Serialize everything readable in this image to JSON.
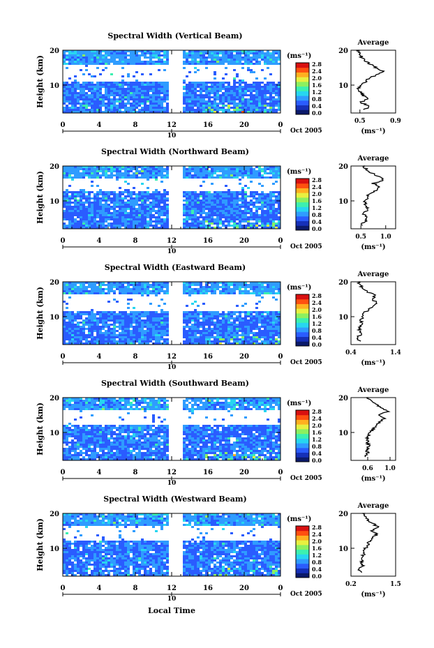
{
  "figure": {
    "x_axis_title": "Local Time",
    "date_label": "Oct 2005",
    "day_label": "10",
    "y_axis_title": "Height (km)",
    "colorbar_unit": "(ms⁻¹)",
    "colorbar_ticks": [
      "0.0",
      "0.4",
      "0.8",
      "1.2",
      "1.6",
      "2.0",
      "2.4",
      "2.8"
    ],
    "colorbar_range": [
      0.0,
      2.8
    ],
    "colormap": [
      "#0b1a6a",
      "#1630b8",
      "#2a5cff",
      "#2f9cff",
      "#27d6f0",
      "#3cf0b0",
      "#8cf060",
      "#e8f040",
      "#ffb020",
      "#ff5010",
      "#d81010"
    ],
    "avg_title": "Average",
    "avg_unit": "(ms⁻¹)"
  },
  "chart_data": [
    {
      "type": "heatmap",
      "title": "Spectral Width (Vertical Beam)",
      "xlabel": "Local Time",
      "ylabel": "Height (km)",
      "x_ticks": [
        "0",
        "4",
        "8",
        "12",
        "16",
        "20",
        "0"
      ],
      "xlim": [
        0,
        24
      ],
      "y_ticks": [
        "10",
        "20"
      ],
      "ylim": [
        2,
        20
      ],
      "data_gap_hours": [
        11.9,
        13.1
      ],
      "blank_height_km": [
        11.5,
        15.8
      ],
      "profile": {
        "title": "Average",
        "xlabel": "(ms⁻¹)",
        "x_ticks": [
          "0.5",
          "0.9"
        ],
        "xlim": [
          0.4,
          0.9
        ],
        "heights": [
          3,
          4,
          5,
          6,
          7,
          8,
          9,
          10,
          11,
          12,
          13,
          14,
          15,
          16,
          17,
          18,
          19,
          20
        ],
        "values": [
          0.55,
          0.62,
          0.5,
          0.58,
          0.54,
          0.5,
          0.48,
          0.52,
          0.56,
          0.6,
          0.7,
          0.76,
          0.68,
          0.62,
          0.56,
          0.52,
          0.5,
          0.48
        ]
      }
    },
    {
      "type": "heatmap",
      "title": "Spectral Width (Northward Beam)",
      "xlabel": "Local Time",
      "ylabel": "Height (km)",
      "x_ticks": [
        "0",
        "4",
        "8",
        "12",
        "16",
        "20",
        "0"
      ],
      "xlim": [
        0,
        24
      ],
      "y_ticks": [
        "10",
        "20"
      ],
      "ylim": [
        2,
        20
      ],
      "data_gap_hours": [
        11.9,
        13.1
      ],
      "blank_height_km": [
        12.8,
        16.2
      ],
      "profile": {
        "title": "Average",
        "xlabel": "(ms⁻¹)",
        "x_ticks": [
          "0.5",
          "1.0"
        ],
        "xlim": [
          0.3,
          1.2
        ],
        "heights": [
          3,
          4,
          5,
          6,
          7,
          8,
          9,
          10,
          11,
          12,
          13,
          14,
          15,
          16,
          17,
          18,
          19,
          20
        ],
        "values": [
          0.5,
          0.58,
          0.62,
          0.56,
          0.6,
          0.64,
          0.6,
          0.58,
          0.62,
          0.68,
          0.8,
          0.9,
          0.75,
          0.95,
          0.85,
          0.72,
          0.62,
          0.55
        ]
      }
    },
    {
      "type": "heatmap",
      "title": "Spectral Width (Eastward Beam)",
      "xlabel": "Local Time",
      "ylabel": "Height (km)",
      "x_ticks": [
        "0",
        "4",
        "8",
        "12",
        "16",
        "20",
        "0"
      ],
      "xlim": [
        0,
        24
      ],
      "y_ticks": [
        "10",
        "20"
      ],
      "ylim": [
        2,
        20
      ],
      "data_gap_hours": [
        11.9,
        13.1
      ],
      "blank_height_km": [
        11.8,
        16.0
      ],
      "profile": {
        "title": "Average",
        "xlabel": "(ms⁻¹)",
        "x_ticks": [
          "0.4",
          "1.4"
        ],
        "xlim": [
          0.4,
          1.4
        ],
        "heights": [
          3,
          4,
          5,
          6,
          7,
          8,
          9,
          10,
          11,
          12,
          13,
          14,
          15,
          16,
          17,
          18,
          19,
          20
        ],
        "values": [
          0.6,
          0.55,
          0.62,
          0.58,
          0.6,
          0.64,
          0.62,
          0.66,
          0.7,
          0.78,
          0.9,
          1.0,
          0.85,
          0.95,
          0.8,
          0.7,
          0.6,
          0.58
        ]
      }
    },
    {
      "type": "heatmap",
      "title": "Spectral Width (Southward Beam)",
      "xlabel": "Local Time",
      "ylabel": "Height (km)",
      "x_ticks": [
        "0",
        "4",
        "8",
        "12",
        "16",
        "20",
        "0"
      ],
      "xlim": [
        0,
        24
      ],
      "y_ticks": [
        "10",
        "20"
      ],
      "ylim": [
        2,
        20
      ],
      "data_gap_hours": [
        11.9,
        13.1
      ],
      "blank_height_km": [
        12.6,
        16.4
      ],
      "profile": {
        "title": "Average",
        "xlabel": "(ms⁻¹)",
        "x_ticks": [
          "0.6",
          "1.0"
        ],
        "xlim": [
          0.3,
          1.1
        ],
        "heights": [
          3,
          4,
          5,
          6,
          7,
          8,
          9,
          10,
          11,
          12,
          13,
          14,
          15,
          16,
          17,
          18,
          19,
          20
        ],
        "values": [
          0.55,
          0.6,
          0.58,
          0.62,
          0.6,
          0.58,
          0.62,
          0.65,
          0.7,
          0.76,
          0.82,
          0.9,
          0.8,
          0.95,
          0.85,
          0.75,
          0.65,
          0.6
        ]
      }
    },
    {
      "type": "heatmap",
      "title": "Spectral Width (Westward Beam)",
      "xlabel": "Local Time",
      "ylabel": "Height (km)",
      "x_ticks": [
        "0",
        "4",
        "8",
        "12",
        "16",
        "20",
        "0"
      ],
      "xlim": [
        0,
        24
      ],
      "y_ticks": [
        "10",
        "20"
      ],
      "ylim": [
        2,
        20
      ],
      "data_gap_hours": [
        11.9,
        13.1
      ],
      "blank_height_km": [
        12.4,
        16.0
      ],
      "profile": {
        "title": "Average",
        "xlabel": "(ms⁻¹)",
        "x_ticks": [
          "0.2",
          "1.5"
        ],
        "xlim": [
          0.2,
          1.5
        ],
        "heights": [
          3,
          4,
          5,
          6,
          7,
          8,
          9,
          10,
          11,
          12,
          13,
          14,
          15,
          16,
          17,
          18,
          19,
          20
        ],
        "values": [
          0.5,
          0.45,
          0.55,
          0.52,
          0.5,
          0.56,
          0.6,
          0.62,
          0.68,
          0.75,
          0.85,
          0.95,
          0.8,
          1.0,
          0.85,
          0.7,
          0.6,
          0.55
        ]
      }
    }
  ]
}
